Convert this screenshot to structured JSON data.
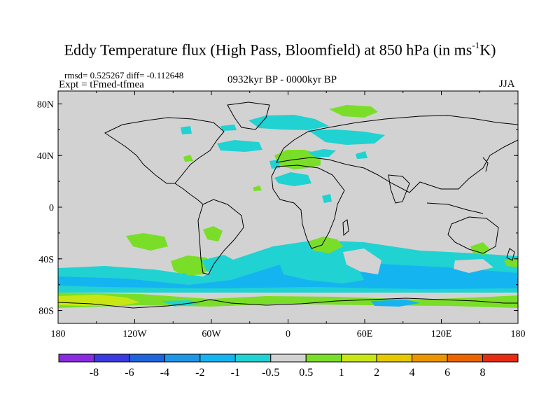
{
  "title": {
    "main": "Eddy Temperature flux (High Pass, Bloomfield) at 850 hPa (in ms",
    "sup": "-1",
    "tail": "K)"
  },
  "stats": "rmsd= 0.525267 diff= -0.112648",
  "expt": "Expt = tFmed-tfmea",
  "period": "0932kyr BP - 0000kyr BP",
  "season": "JJA",
  "map": {
    "lon_ticks": [
      "180",
      "120W",
      "60W",
      "0",
      "60E",
      "120E",
      "180"
    ],
    "lat_ticks": [
      "80N",
      "40N",
      "0",
      "40S",
      "80S"
    ]
  },
  "colorbar": {
    "labels": [
      "-8",
      "-6",
      "-4",
      "-2",
      "-1",
      "-0.5",
      "0.5",
      "1",
      "2",
      "4",
      "6",
      "8"
    ],
    "colors": [
      "#8a2be2",
      "#3a3ae0",
      "#1e64dc",
      "#1e96e6",
      "#14b4f0",
      "#20d2d2",
      "#d2d2d2",
      "#7ade28",
      "#c8e614",
      "#e6c800",
      "#eb9600",
      "#eb6400",
      "#e62d14"
    ]
  },
  "palette": {
    "neutral": "#d2d2d2",
    "pos1": "#7ade28",
    "pos2": "#c8e614",
    "neg05": "#20d2d2",
    "neg1": "#14b4f0",
    "neg2": "#1e96e6"
  }
}
